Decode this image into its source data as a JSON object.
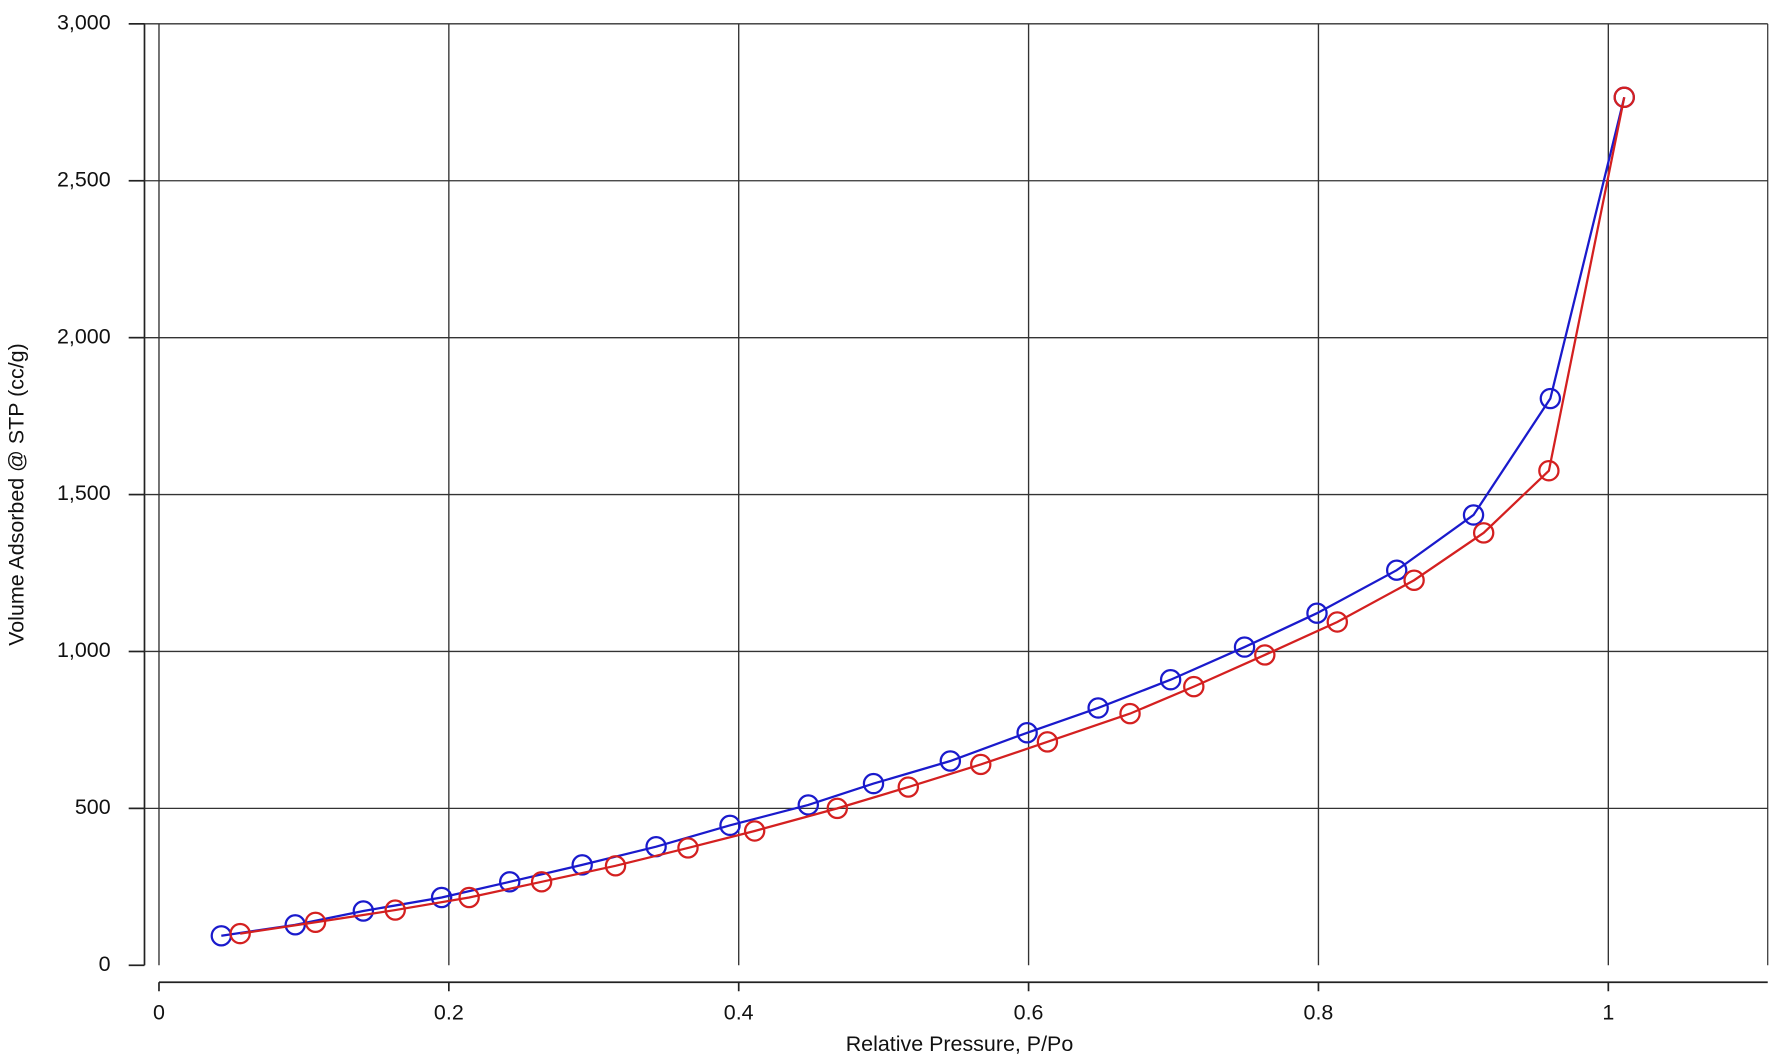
{
  "chart_data": {
    "type": "line",
    "x_label": "Relative Pressure, P/Po",
    "y_label": "Volume Adsorbed @ STP (cc/g)",
    "xlim": [
      -0.01,
      1.11
    ],
    "ylim": [
      0,
      3000
    ],
    "xticks": [
      0,
      0.2,
      0.4,
      0.6,
      0.8,
      1
    ],
    "yticks": [
      0,
      {
        "value": 500,
        "label": "500"
      },
      {
        "value": 1000,
        "label": "1,000"
      },
      {
        "value": 1500,
        "label": "1,500"
      },
      {
        "value": 2000,
        "label": "2,000"
      },
      {
        "value": 2500,
        "label": "2,500"
      },
      {
        "value": 3000,
        "label": "3,000"
      }
    ],
    "grid": true,
    "series": [
      {
        "color": "#1a1acc",
        "x": [
          0.043,
          0.094,
          0.141,
          0.195,
          0.242,
          0.292,
          0.343,
          0.394,
          0.448,
          0.493,
          0.546,
          0.599,
          0.648,
          0.698,
          0.749,
          0.799,
          0.854,
          0.907,
          0.96,
          1.011
        ],
        "values": [
          94,
          129,
          173,
          216,
          266,
          320,
          378,
          446,
          511,
          579,
          651,
          741,
          820,
          910,
          1014,
          1122,
          1259,
          1435,
          1806,
          2766
        ]
      },
      {
        "color": "#d42020",
        "x": [
          0.056,
          0.108,
          0.163,
          0.214,
          0.264,
          0.315,
          0.365,
          0.411,
          0.468,
          0.517,
          0.567,
          0.613,
          0.67,
          0.714,
          0.763,
          0.813,
          0.866,
          0.914,
          0.959,
          1.011
        ],
        "values": [
          101,
          137,
          176,
          216,
          266,
          317,
          374,
          428,
          500,
          568,
          640,
          712,
          802,
          888,
          989,
          1094,
          1227,
          1378,
          1576,
          2766
        ]
      }
    ]
  }
}
